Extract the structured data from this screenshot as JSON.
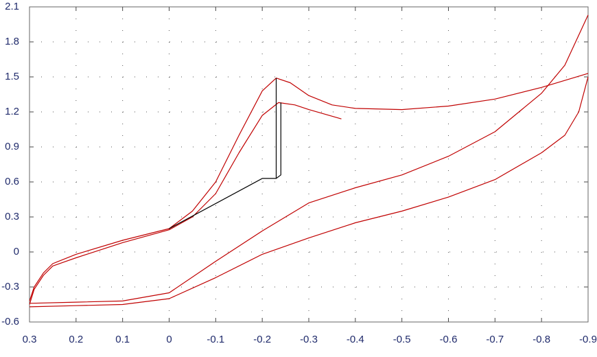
{
  "chart_data": {
    "type": "line",
    "xlim": [
      0.3,
      -0.9
    ],
    "ylim": [
      -0.6,
      2.1
    ],
    "xticks": [
      0.3,
      0.2,
      0.1,
      0,
      -0.1,
      -0.2,
      -0.3,
      -0.4,
      -0.5,
      -0.6,
      -0.7,
      -0.8,
      -0.9
    ],
    "yticks": [
      -0.6,
      -0.3,
      0,
      0.3,
      0.6,
      0.9,
      1.2,
      1.5,
      1.8,
      2.1
    ],
    "grid": true,
    "series": [
      {
        "color": "#c00000",
        "x": [
          0.3,
          0.29,
          0.27,
          0.25,
          0.2,
          0.1,
          0,
          -0.05,
          -0.1,
          -0.15,
          -0.2,
          -0.23,
          -0.26,
          -0.3,
          -0.35,
          -0.4,
          -0.5,
          -0.6,
          -0.7,
          -0.8,
          -0.9
        ],
        "values": [
          -0.42,
          -0.3,
          -0.18,
          -0.1,
          -0.02,
          0.1,
          0.2,
          0.35,
          0.6,
          1.0,
          1.38,
          1.49,
          1.45,
          1.34,
          1.26,
          1.23,
          1.22,
          1.25,
          1.31,
          1.41,
          1.53
        ]
      },
      {
        "color": "#c00000",
        "x": [
          0.3,
          0.29,
          0.27,
          0.25,
          0.2,
          0.1,
          0,
          -0.05,
          -0.1,
          -0.15,
          -0.2,
          -0.235,
          -0.27,
          -0.3,
          -0.37
        ],
        "values": [
          -0.45,
          -0.32,
          -0.2,
          -0.12,
          -0.05,
          0.08,
          0.19,
          0.3,
          0.5,
          0.85,
          1.17,
          1.28,
          1.26,
          1.22,
          1.14
        ]
      },
      {
        "color": "#c00000",
        "x": [
          -0.9,
          -0.85,
          -0.8,
          -0.7,
          -0.6,
          -0.5,
          -0.4,
          -0.3,
          -0.2,
          -0.1,
          0,
          0.1,
          0.2,
          0.3
        ],
        "values": [
          2.03,
          1.6,
          1.36,
          1.03,
          0.82,
          0.66,
          0.55,
          0.42,
          0.18,
          -0.08,
          -0.35,
          -0.42,
          -0.43,
          -0.44
        ]
      },
      {
        "color": "#c00000",
        "x": [
          -0.9,
          -0.88,
          -0.85,
          -0.8,
          -0.7,
          -0.6,
          -0.5,
          -0.4,
          -0.3,
          -0.2,
          -0.1,
          0,
          0.1,
          0.2,
          0.3
        ],
        "values": [
          1.5,
          1.2,
          1.0,
          0.85,
          0.62,
          0.47,
          0.35,
          0.25,
          0.12,
          -0.02,
          -0.22,
          -0.4,
          -0.45,
          -0.46,
          -0.47
        ]
      },
      {
        "color": "#000000",
        "x": [
          0,
          -0.2,
          -0.23,
          -0.23
        ],
        "values": [
          0.2,
          0.63,
          0.63,
          1.49
        ]
      },
      {
        "color": "#000000",
        "x": [
          -0.24,
          -0.24,
          -0.23
        ],
        "values": [
          1.28,
          0.66,
          0.63
        ]
      }
    ]
  }
}
